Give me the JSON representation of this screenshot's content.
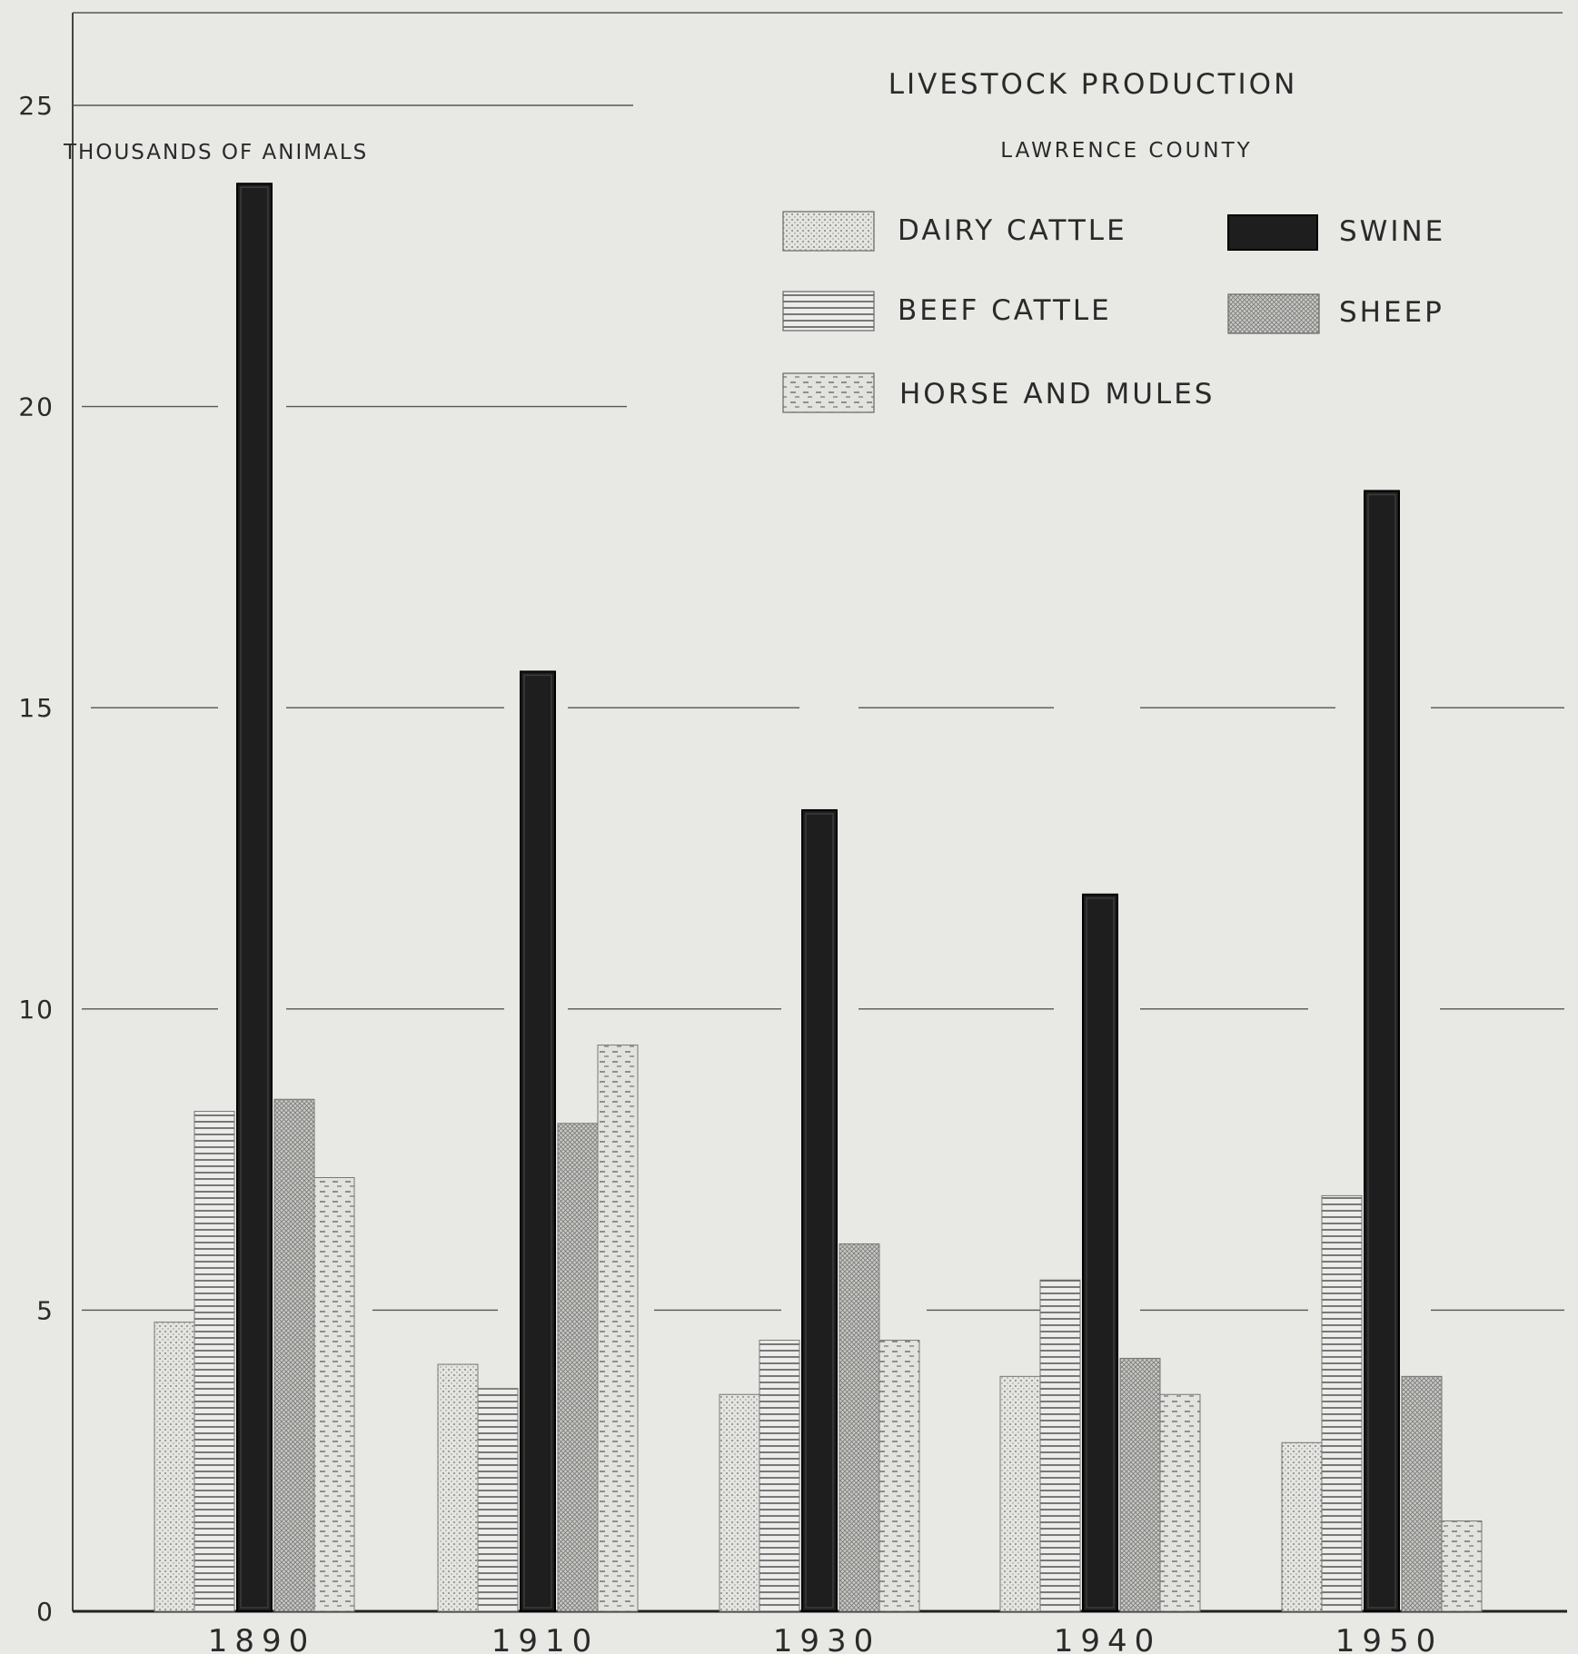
{
  "chart_data": {
    "type": "bar",
    "title": "LIVESTOCK PRODUCTION",
    "subtitle": "LAWRENCE COUNTY",
    "ylabel": "THOUSANDS OF ANIMALS",
    "xlabel": "",
    "categories": [
      "1890",
      "1910",
      "1930",
      "1940",
      "1950"
    ],
    "y_ticks": [
      "0",
      "5",
      "10",
      "15",
      "20",
      "25"
    ],
    "ylim": [
      0,
      25
    ],
    "grid": true,
    "legend_position": "top-right",
    "series": [
      {
        "name": "DAIRY CATTLE",
        "pattern": "dots",
        "values": [
          4.8,
          4.1,
          3.6,
          3.9,
          2.8
        ]
      },
      {
        "name": "BEEF CATTLE",
        "pattern": "horizontal-lines",
        "values": [
          8.3,
          3.7,
          4.5,
          5.5,
          6.9
        ]
      },
      {
        "name": "SWINE",
        "pattern": "solid-black",
        "values": [
          23.7,
          15.6,
          13.3,
          11.9,
          18.6
        ]
      },
      {
        "name": "SHEEP",
        "pattern": "crosshatch",
        "values": [
          8.5,
          8.1,
          6.1,
          4.2,
          3.9
        ]
      },
      {
        "name": "HORSE AND MULES",
        "pattern": "dashes",
        "values": [
          7.2,
          9.4,
          4.5,
          3.6,
          1.5
        ]
      }
    ]
  },
  "colors": {
    "background": "#e8e8e5",
    "ink": "#2a2a2a",
    "swine_fill": "#1e1e1e"
  }
}
